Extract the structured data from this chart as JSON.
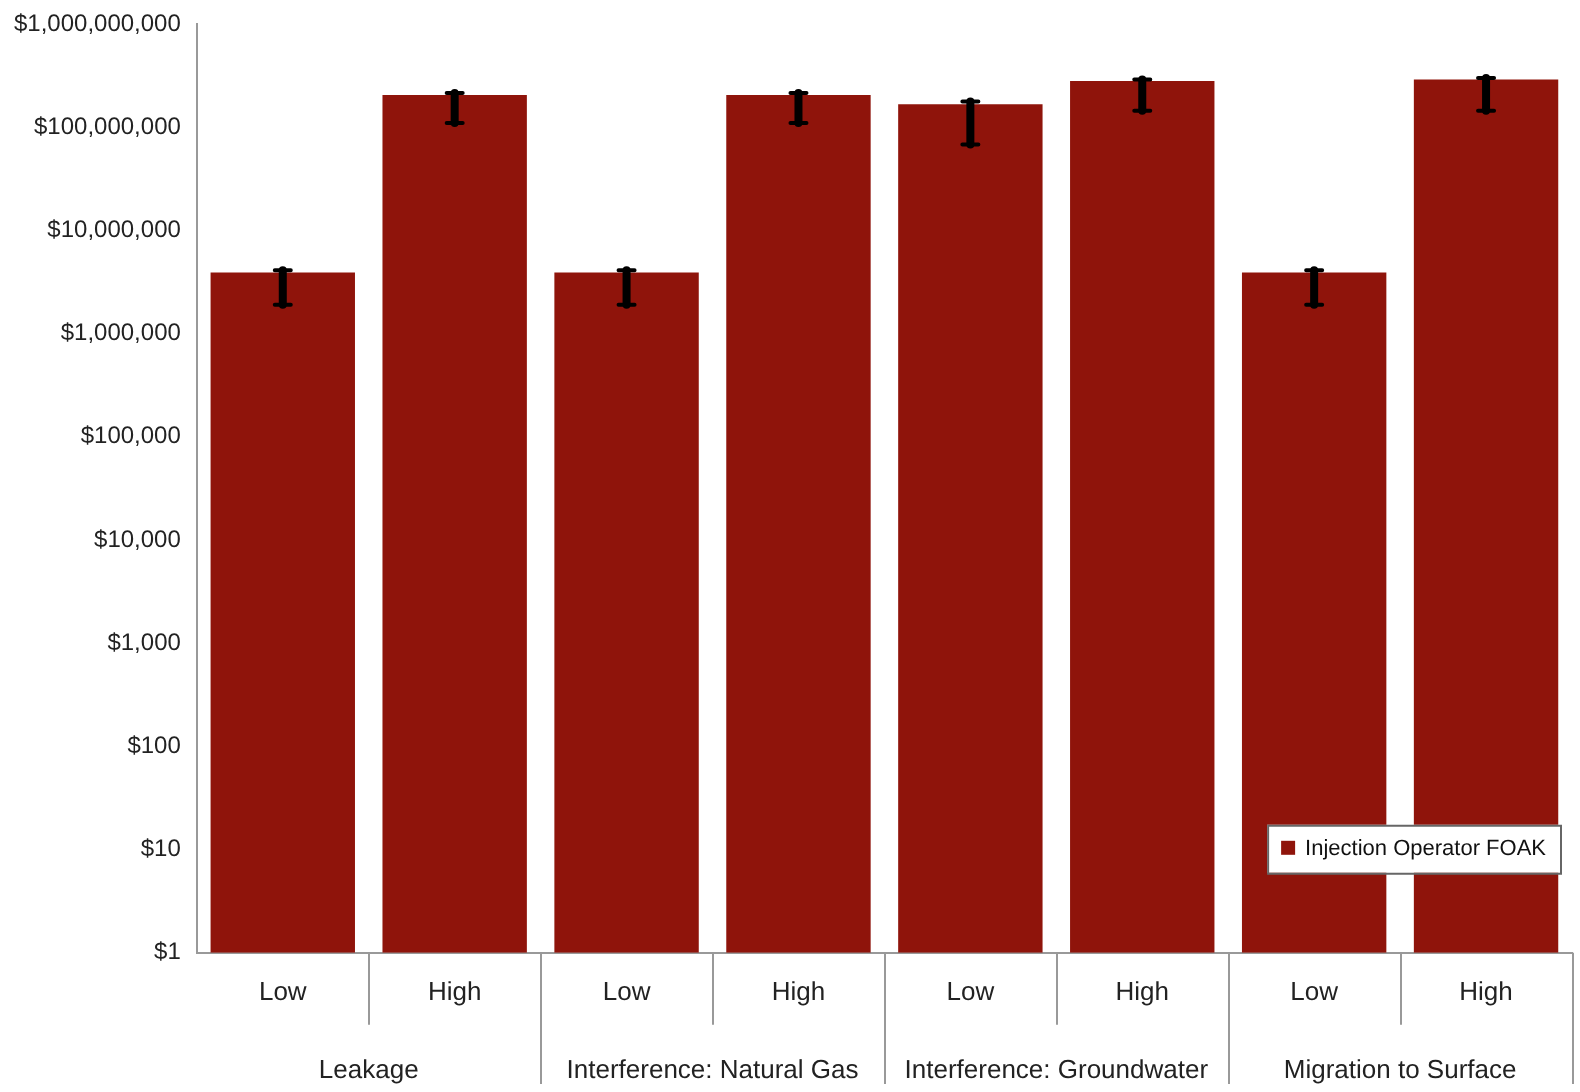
{
  "chart_data": {
    "type": "bar",
    "categories": [
      "Low",
      "High",
      "Low",
      "High",
      "Low",
      "High",
      "Low",
      "High"
    ],
    "series": [
      {
        "name": "Injection Operator FOAK",
        "color": "#8f140b",
        "values": [
          3900000,
          205000000,
          3900000,
          205000000,
          167000000,
          280000000,
          3900000,
          290000000
        ],
        "errors": [
          [
            1900000,
            4100000
          ],
          [
            110000000,
            215000000
          ],
          [
            1900000,
            4100000
          ],
          [
            110000000,
            215000000
          ],
          [
            68000000,
            177000000
          ],
          [
            144000000,
            290000000
          ],
          [
            1900000,
            4100000
          ],
          [
            144000000,
            300000000
          ]
        ]
      }
    ],
    "annotations": [
      "Leakage",
      "Interference: Natural Gas",
      "Interference: Groundwater",
      "Migration to Surface"
    ],
    "log": "y",
    "ylim": [
      1,
      1000000000
    ],
    "yticks": [
      {
        "value": 1,
        "label": "$1"
      },
      {
        "value": 10,
        "label": "$10"
      },
      {
        "value": 100,
        "label": "$100"
      },
      {
        "value": 1000,
        "label": "$1,000"
      },
      {
        "value": 10000,
        "label": "$10,000"
      },
      {
        "value": 100000,
        "label": "$100,000"
      },
      {
        "value": 1000000,
        "label": "$1,000,000"
      },
      {
        "value": 10000000,
        "label": "$10,000,000"
      },
      {
        "value": 100000000,
        "label": "$100,000,000"
      },
      {
        "value": 1000000000,
        "label": "$1,000,000,000"
      }
    ],
    "grid": false,
    "legend": "bottom right"
  }
}
